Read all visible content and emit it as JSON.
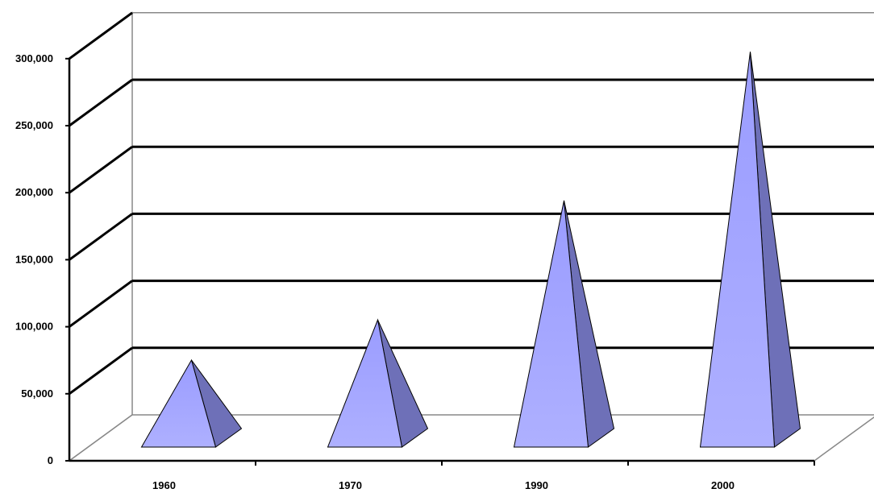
{
  "chart_data": {
    "type": "bar",
    "style": "3d-pyramid",
    "categories": [
      "1960",
      "1970",
      "1990",
      "2000"
    ],
    "values": [
      58000,
      88000,
      177000,
      288000
    ],
    "ylim": [
      0,
      300000
    ],
    "yticks": [
      0,
      50000,
      100000,
      150000,
      200000,
      250000,
      300000
    ],
    "ytick_labels": [
      "0",
      "50,000",
      "100,000",
      "150,000",
      "200,000",
      "250,000",
      "300,000"
    ],
    "title": "",
    "xlabel": "",
    "ylabel": "",
    "grid": true,
    "legend": "none",
    "colors": {
      "pyramid_front": "#a3a5ff",
      "pyramid_side": "#6e70b8",
      "gridline": "#000000",
      "background": "#ffffff"
    }
  }
}
